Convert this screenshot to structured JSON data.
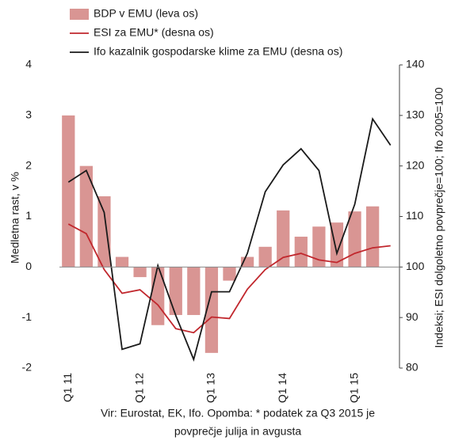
{
  "chart_data": {
    "type": "bar",
    "categories": [
      "Q1 11",
      null,
      null,
      null,
      "Q1 12",
      null,
      null,
      null,
      "Q1 13",
      null,
      null,
      null,
      "Q1 14",
      null,
      null,
      null,
      "Q1 15",
      null,
      null
    ],
    "series": [
      {
        "name": "BDP v EMU (leva os)",
        "color": "#d99593",
        "type": "bar",
        "values": [
          3.0,
          2.0,
          1.4,
          0.2,
          -0.2,
          -1.15,
          -0.95,
          -0.95,
          -1.7,
          -0.27,
          0.2,
          0.4,
          1.12,
          0.6,
          0.8,
          0.88,
          1.1,
          1.2,
          null
        ]
      },
      {
        "name": "ESI za EMU* (desna os)",
        "color": "#c1272d",
        "type": "line",
        "axis": "y2",
        "values": [
          108.5,
          106.6,
          99.5,
          94.8,
          95.5,
          92.5,
          87.8,
          87.0,
          90.1,
          89.8,
          95.6,
          99.5,
          101.9,
          102.7,
          101.4,
          100.9,
          102.7,
          103.8,
          104.2
        ]
      },
      {
        "name": "Ifo kazalnik gospodarske klime za EMU (desna os)",
        "color": "#1a1a1a",
        "type": "line",
        "axis": "y2",
        "values": [
          116.8,
          119.1,
          110.8,
          83.7,
          84.8,
          100.3,
          90.4,
          81.7,
          95.1,
          95.1,
          102.7,
          114.9,
          120.2,
          123.4,
          119.1,
          102.7,
          112.4,
          129.3,
          124.1
        ]
      }
    ],
    "ylabel": "Medletna rast, v %",
    "y2label": "Indeksi; ESI dolgoletno povprečje=100; Ifo 2005=100",
    "ylim": [
      -2,
      4
    ],
    "yticks": [
      -2,
      -1,
      0,
      1,
      2,
      3,
      4
    ],
    "y2lim": [
      80,
      140
    ],
    "y2ticks": [
      80,
      90,
      100,
      110,
      120,
      130,
      140
    ],
    "note": [
      "Vir: Eurostat, EK, Ifo. Opomba: * podatek za Q3 2015 je",
      "povprečje julija in avgusta"
    ]
  }
}
